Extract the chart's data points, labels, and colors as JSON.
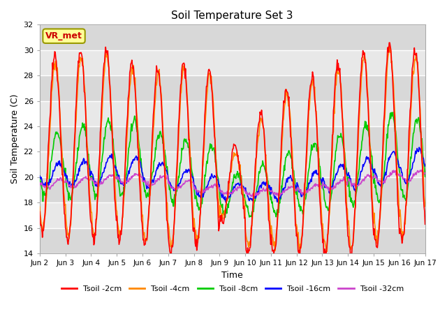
{
  "title": "Soil Temperature Set 3",
  "xlabel": "Time",
  "ylabel": "Soil Temperature (C)",
  "ylim": [
    14,
    32
  ],
  "xlim": [
    0,
    15
  ],
  "yticks": [
    14,
    16,
    18,
    20,
    22,
    24,
    26,
    28,
    30,
    32
  ],
  "xtick_labels": [
    "Jun 2",
    "Jun 3",
    "Jun 4",
    "Jun 5",
    "Jun 6",
    "Jun 7",
    "Jun 8",
    "Jun 9",
    "Jun 10",
    "Jun 11",
    "Jun 12",
    "Jun 13",
    "Jun 14",
    "Jun 15",
    "Jun 16",
    "Jun 17"
  ],
  "annotation_text": "VR_met",
  "annotation_color": "#cc0000",
  "annotation_bg": "#ffff99",
  "annotation_border": "#999900",
  "colors": {
    "Tsoil -2cm": "#ff0000",
    "Tsoil -4cm": "#ff8800",
    "Tsoil -8cm": "#00cc00",
    "Tsoil -16cm": "#0000ff",
    "Tsoil -32cm": "#cc44cc"
  },
  "band_colors": [
    "#d8d8d8",
    "#e8e8e8"
  ],
  "grid_color": "#ffffff",
  "lw": 1.2,
  "day_amplitudes_2cm": [
    7.0,
    7.5,
    7.5,
    7.0,
    7.0,
    7.5,
    7.0,
    3.0,
    5.5,
    6.5,
    7.0,
    7.5,
    8.0,
    8.0,
    7.5
  ],
  "day_bases_2cm": [
    22.5,
    22.5,
    22.5,
    22.0,
    21.5,
    21.5,
    21.5,
    19.5,
    19.5,
    20.5,
    21.0,
    21.5,
    22.0,
    22.5,
    22.5
  ],
  "day_amplitudes_4cm": [
    6.5,
    7.0,
    7.0,
    6.5,
    6.5,
    7.0,
    6.5,
    2.5,
    5.0,
    6.0,
    6.5,
    7.0,
    7.5,
    7.5,
    7.0
  ],
  "day_bases_4cm": [
    22.5,
    22.5,
    22.5,
    22.0,
    21.5,
    21.5,
    21.5,
    19.5,
    19.5,
    20.5,
    21.0,
    21.5,
    22.0,
    22.5,
    22.5
  ],
  "day_amplitudes_8cm": [
    2.5,
    2.8,
    3.0,
    3.0,
    2.5,
    2.5,
    2.5,
    1.5,
    2.0,
    2.5,
    2.8,
    3.0,
    3.2,
    3.5,
    3.2
  ],
  "day_bases_8cm": [
    21.0,
    21.2,
    21.5,
    21.5,
    21.0,
    20.5,
    20.0,
    18.8,
    19.0,
    19.5,
    20.0,
    20.5,
    21.0,
    21.5,
    21.5
  ],
  "day_amplitudes_16cm": [
    0.9,
    1.0,
    1.1,
    1.1,
    0.9,
    0.8,
    0.8,
    0.6,
    0.7,
    0.8,
    0.9,
    1.0,
    1.2,
    1.3,
    1.3
  ],
  "day_bases_16cm": [
    20.2,
    20.3,
    20.5,
    20.5,
    20.2,
    19.8,
    19.3,
    18.9,
    18.9,
    19.1,
    19.5,
    20.0,
    20.3,
    20.7,
    20.9
  ],
  "day_amplitudes_32cm": [
    0.35,
    0.35,
    0.38,
    0.38,
    0.35,
    0.3,
    0.28,
    0.25,
    0.25,
    0.28,
    0.32,
    0.35,
    0.4,
    0.42,
    0.42
  ],
  "day_bases_32cm": [
    19.5,
    19.6,
    19.8,
    19.9,
    19.7,
    19.4,
    19.1,
    18.9,
    18.8,
    18.9,
    19.1,
    19.4,
    19.7,
    20.0,
    20.1
  ]
}
